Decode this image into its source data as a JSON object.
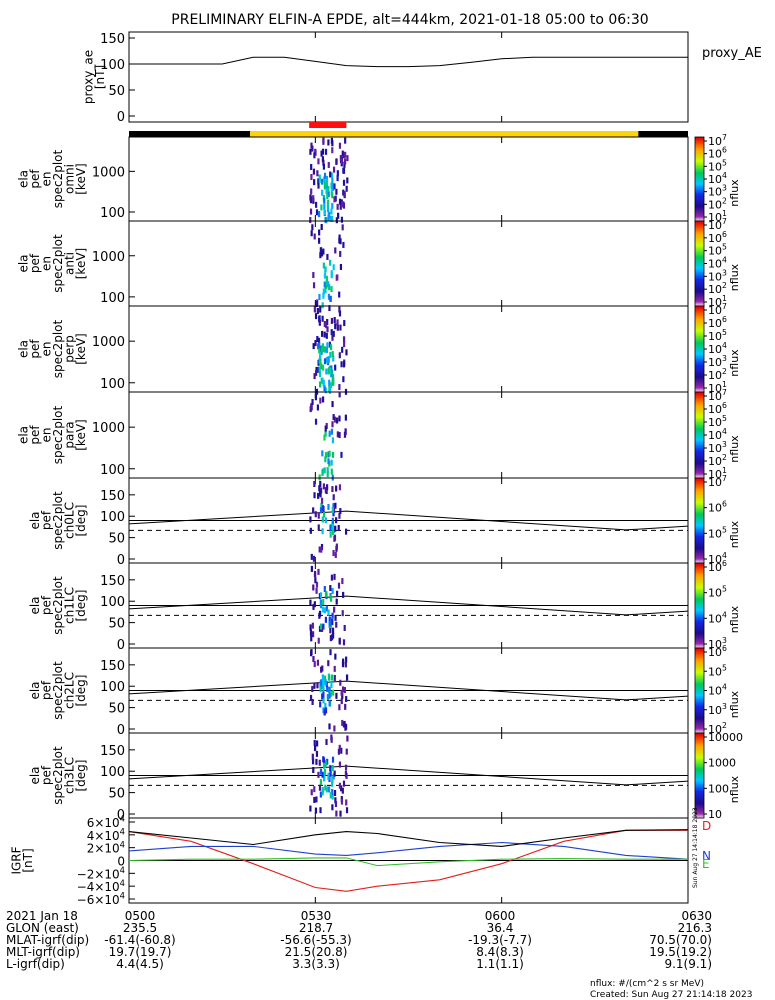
{
  "title": "PRELIMINARY ELFIN-A EPDE, alt=444km, 2021-01-18 05:00 to 06:30",
  "colors": {
    "axis": "#000000",
    "bz_red": "#e0201c",
    "bx_blue": "#1f3fd0",
    "by_green": "#33c02a",
    "total_black": "#000000",
    "bar_black": "#000000",
    "bar_yellow": "#ffd500",
    "bar_red": "#ff1010"
  },
  "chart_data": [
    {
      "id": "proxy_ae",
      "type": "line",
      "ylabel": [
        "proxy_ae",
        "[nT]"
      ],
      "ylim": [
        0,
        150
      ],
      "yticks": [
        "0",
        "50",
        "100",
        "150"
      ],
      "series_label": "proxy_AE",
      "x_min": [
        0,
        5,
        10,
        15,
        20,
        25,
        30,
        35,
        40,
        45,
        50,
        55,
        60,
        65,
        70,
        75,
        80,
        85,
        90
      ],
      "y": [
        100,
        100,
        100,
        100,
        113,
        113,
        105,
        97,
        95,
        95,
        97,
        103,
        110,
        113,
        113,
        113,
        113,
        113,
        113
      ]
    },
    {
      "id": "status_bar",
      "type": "bar",
      "segments": [
        {
          "from_min": 0,
          "to_min": 19.5,
          "color": "#000000"
        },
        {
          "from_min": 19.5,
          "to_min": 82,
          "color": "#ffd500"
        },
        {
          "from_min": 82,
          "to_min": 90,
          "color": "#000000"
        }
      ],
      "marker": {
        "from_min": 29,
        "to_min": 35,
        "color": "#ff1010"
      }
    },
    {
      "id": "en_omni",
      "type": "heatmap",
      "ylabel": [
        "ela",
        "pef",
        "en",
        "spec2plot",
        "omni",
        "[keV]"
      ],
      "yscale": "log",
      "ylim": [
        60,
        7000
      ],
      "yticks": [
        "100",
        "1000"
      ],
      "zlabel": "nflux",
      "ztick_exponents": [
        "10",
        "10",
        "10",
        "10",
        "10",
        "10",
        "10"
      ],
      "ztick_powers": [
        "1",
        "2",
        "3",
        "4",
        "5",
        "6",
        "7"
      ],
      "zexp_range": [
        1,
        7
      ]
    },
    {
      "id": "en_anti",
      "type": "heatmap",
      "ylabel": [
        "ela",
        "pef",
        "en",
        "spec2plot",
        "anti",
        "[keV]"
      ],
      "yscale": "log",
      "ylim": [
        60,
        7000
      ],
      "yticks": [
        "100",
        "1000"
      ],
      "zlabel": "nflux",
      "ztick_exponents": [
        "10",
        "10",
        "10",
        "10",
        "10",
        "10",
        "10"
      ],
      "ztick_powers": [
        "1",
        "2",
        "3",
        "4",
        "5",
        "6",
        "7"
      ],
      "zexp_range": [
        1,
        7
      ]
    },
    {
      "id": "en_perp",
      "type": "heatmap",
      "ylabel": [
        "ela",
        "pef",
        "en",
        "spec2plot",
        "perp",
        "[keV]"
      ],
      "yscale": "log",
      "ylim": [
        60,
        7000
      ],
      "yticks": [
        "100",
        "1000"
      ],
      "zlabel": "nflux",
      "ztick_exponents": [
        "10",
        "10",
        "10",
        "10",
        "10",
        "10",
        "10"
      ],
      "ztick_powers": [
        "1",
        "2",
        "3",
        "4",
        "5",
        "6",
        "7"
      ],
      "zexp_range": [
        1,
        7
      ]
    },
    {
      "id": "en_para",
      "type": "heatmap",
      "ylabel": [
        "ela",
        "pef",
        "en",
        "spec2plot",
        "para",
        "[keV]"
      ],
      "yscale": "log",
      "ylim": [
        60,
        7000
      ],
      "yticks": [
        "100",
        "1000"
      ],
      "zlabel": "nflux",
      "ztick_exponents": [
        "10",
        "10",
        "10",
        "10",
        "10",
        "10",
        "10"
      ],
      "ztick_powers": [
        "1",
        "2",
        "3",
        "4",
        "5",
        "6",
        "7"
      ],
      "zexp_range": [
        1,
        7
      ]
    },
    {
      "id": "pa_ch0",
      "type": "heatmap",
      "ylabel": [
        "ela",
        "pef",
        "spec2plot",
        "ch0LC",
        "[deg]"
      ],
      "ylim": [
        0,
        180
      ],
      "yticks": [
        "0",
        "50",
        "100",
        "150"
      ],
      "zlabel": "nflux",
      "ztick_exponents": [
        "10",
        "10",
        "10",
        "10"
      ],
      "ztick_powers": [
        "4",
        "5",
        "6",
        "7"
      ],
      "zexp_range": [
        3.7,
        7
      ]
    },
    {
      "id": "pa_ch1",
      "type": "heatmap",
      "ylabel": [
        "ela",
        "pef",
        "spec2plot",
        "ch1LC",
        "[deg]"
      ],
      "ylim": [
        0,
        180
      ],
      "yticks": [
        "0",
        "50",
        "100",
        "150"
      ],
      "zlabel": "nflux",
      "ztick_exponents": [
        "10",
        "10",
        "10",
        "10"
      ],
      "ztick_powers": [
        "3",
        "4",
        "5",
        "6"
      ],
      "zexp_range": [
        3,
        6
      ]
    },
    {
      "id": "pa_ch2",
      "type": "heatmap",
      "ylabel": [
        "ela",
        "pef",
        "spec2plot",
        "ch2LC",
        "[deg]"
      ],
      "ylim": [
        0,
        180
      ],
      "yticks": [
        "0",
        "50",
        "100",
        "150"
      ],
      "zlabel": "nflux",
      "ztick_exponents": [
        "10",
        "10",
        "10",
        "10",
        "10"
      ],
      "ztick_powers": [
        "2",
        "3",
        "4",
        "5",
        "6"
      ],
      "zexp_range": [
        2,
        6
      ]
    },
    {
      "id": "pa_ch3",
      "type": "heatmap",
      "ylabel": [
        "ela",
        "pef",
        "spec2plot",
        "ch3LC",
        "[deg]"
      ],
      "ylim": [
        0,
        180
      ],
      "yticks": [
        "0",
        "50",
        "100",
        "150"
      ],
      "zlabel": "nflux",
      "zticks_plain": [
        "10",
        "100",
        "1000",
        "10000"
      ],
      "zexp_range": [
        1,
        4
      ]
    },
    {
      "id": "igrf",
      "type": "line",
      "ylabel": [
        "IGRF",
        "[nT]"
      ],
      "ylim": [
        -60000,
        60000
      ],
      "ytick_values": [
        -60000,
        -40000,
        -20000,
        0,
        20000,
        40000,
        60000
      ],
      "ytick_mantissa": [
        "−6×10",
        "−4×10",
        "−2×10",
        "0",
        "2×10",
        "4×10",
        "6×10"
      ],
      "ytick_power": [
        "4",
        "4",
        "4",
        "",
        "4",
        "4",
        "4"
      ],
      "legend": [
        "D",
        "N",
        "E"
      ],
      "x_min": [
        0,
        10,
        20,
        30,
        35,
        40,
        50,
        60,
        70,
        80,
        90
      ],
      "series": [
        {
          "name": "D",
          "color": "#e0201c",
          "y": [
            45000,
            30000,
            -5000,
            -42000,
            -48000,
            -40000,
            -30000,
            -5000,
            30000,
            47000,
            47000
          ]
        },
        {
          "name": "N",
          "color": "#1f3fd0",
          "y": [
            15000,
            22000,
            22000,
            10000,
            8000,
            12000,
            22000,
            28000,
            22000,
            8000,
            2000
          ]
        },
        {
          "name": "E",
          "color": "#33c02a",
          "y": [
            0,
            2000,
            2000,
            4000,
            4000,
            -8000,
            -2000,
            2000,
            3000,
            2000,
            2000
          ]
        },
        {
          "name": "total",
          "color": "#000000",
          "y": [
            45000,
            35000,
            25000,
            40000,
            45000,
            42000,
            28000,
            22000,
            35000,
            47000,
            48000
          ]
        }
      ]
    }
  ],
  "xaxis": {
    "row_labels": [
      "2021 Jan 18",
      "GLON (east)",
      "MLAT-igrf(dip)",
      "MLT-igrf(dip)",
      "L-igrf(dip)"
    ],
    "columns": [
      {
        "time": "0500",
        "values": [
          "235.5",
          "-61.4(-60.8)",
          "19.7(19.7)",
          "4.4(4.5)"
        ]
      },
      {
        "time": "0530",
        "values": [
          "218.7",
          "-56.6(-55.3)",
          "21.5(20.8)",
          "3.3(3.3)"
        ]
      },
      {
        "time": "0600",
        "values": [
          "36.4",
          "-19.3(-7.7)",
          "8.4(8.3)",
          "1.1(1.1)"
        ]
      },
      {
        "time": "0630",
        "values": [
          "216.3",
          "70.5(70.0)",
          "19.5(19.2)",
          "9.1(9.1)"
        ]
      }
    ]
  },
  "footer": {
    "units": "nflux: #/(cm^2 s sr MeV)",
    "created": "Created: Sun Aug 27 21:14:18 2023",
    "side_stamp": "Sun Aug 27 14:14:18 2023"
  }
}
